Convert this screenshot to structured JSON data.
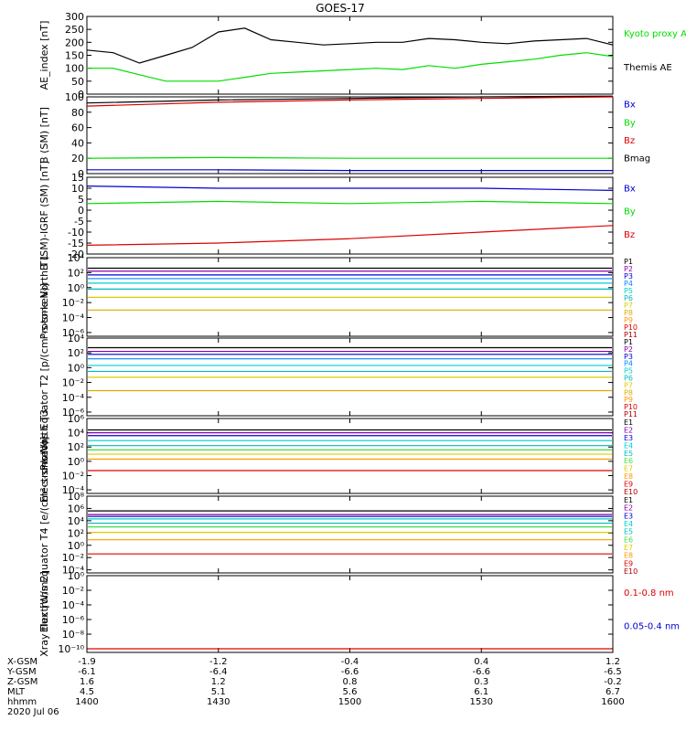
{
  "title": "GOES-17",
  "colors": {
    "black": "#000000",
    "green": "#00dd00",
    "blue": "#0000cc",
    "red": "#dd0000",
    "purple": "#8800aa",
    "cyan": "#00cccc",
    "teal": "#00bbbb",
    "ltgreen": "#44dd44",
    "yellow": "#dddd00",
    "orange": "#ff9900",
    "gold": "#ddaa00"
  },
  "x_axis": {
    "time_labels": [
      "1400",
      "1430",
      "1500",
      "1530",
      "1600"
    ],
    "rows": [
      {
        "label": "X-GSM",
        "values": [
          "-1.9",
          "-1.2",
          "-0.4",
          "0.4",
          "1.2"
        ]
      },
      {
        "label": "Y-GSM",
        "values": [
          "-6.1",
          "-6.4",
          "-6.6",
          "-6.6",
          "-6.5"
        ]
      },
      {
        "label": "Z-GSM",
        "values": [
          "1.6",
          "1.2",
          "0.8",
          "0.3",
          "-0.2"
        ]
      },
      {
        "label": "MLT",
        "values": [
          "4.5",
          "5.1",
          "5.6",
          "6.1",
          "6.7"
        ]
      },
      {
        "label": "hhmm",
        "values": [
          "1400",
          "1430",
          "1500",
          "1530",
          "1600"
        ]
      }
    ],
    "date": "2020 Jul 06"
  },
  "chart_data": [
    {
      "type": "line",
      "ylabel": "AE_index [nT]",
      "yticks": [
        "300",
        "250",
        "200",
        "150",
        "100",
        "50",
        "0"
      ],
      "ylim": [
        0,
        300
      ],
      "x": [
        1400,
        1406,
        1412,
        1418,
        1424,
        1430,
        1436,
        1442,
        1448,
        1454,
        1500,
        1506,
        1512,
        1518,
        1524,
        1530,
        1536,
        1542,
        1548,
        1554,
        1600
      ],
      "series": [
        {
          "name": "Kyoto proxy AE",
          "color": "#00dd00",
          "values": [
            100,
            100,
            75,
            50,
            50,
            50,
            65,
            80,
            85,
            90,
            95,
            100,
            95,
            110,
            100,
            115,
            125,
            135,
            150,
            160,
            145
          ]
        },
        {
          "name": "Themis AE",
          "color": "#000000",
          "values": [
            170,
            160,
            120,
            150,
            180,
            240,
            255,
            210,
            200,
            190,
            195,
            200,
            200,
            215,
            210,
            200,
            195,
            205,
            210,
            215,
            190
          ]
        }
      ],
      "legend": [
        {
          "text": "Kyoto proxy AE",
          "color": "#00dd00"
        },
        {
          "text": "Themis AE",
          "color": "#000000"
        }
      ]
    },
    {
      "type": "line",
      "ylabel": "B (SM) [nT]",
      "yticks": [
        "100",
        "80",
        "60",
        "40",
        "20",
        "0"
      ],
      "ylim": [
        0,
        100
      ],
      "x": [
        1400,
        1430,
        1500,
        1530,
        1600
      ],
      "series": [
        {
          "name": "Bmag",
          "color": "#000000",
          "values": [
            92,
            96,
            98,
            100,
            101
          ]
        },
        {
          "name": "Bx",
          "color": "#0000cc",
          "values": [
            5,
            5,
            4,
            4,
            4
          ]
        },
        {
          "name": "By",
          "color": "#00dd00",
          "values": [
            20,
            21,
            20,
            20,
            20
          ]
        },
        {
          "name": "Bz",
          "color": "#dd0000",
          "values": [
            88,
            93,
            96,
            98,
            100
          ]
        }
      ],
      "legend": [
        {
          "text": "Bx",
          "color": "#0000cc"
        },
        {
          "text": "By",
          "color": "#00dd00"
        },
        {
          "text": "Bz",
          "color": "#dd0000"
        },
        {
          "text": "Bmag",
          "color": "#000000"
        }
      ]
    },
    {
      "type": "line",
      "ylabel": "B (SM)-IGRF (SM) [nT]",
      "yticks": [
        "15",
        "10",
        "5",
        "0",
        "-5",
        "-10",
        "-15",
        "-20"
      ],
      "ylim": [
        -20,
        15
      ],
      "x": [
        1400,
        1430,
        1500,
        1530,
        1600
      ],
      "series": [
        {
          "name": "Bx",
          "color": "#0000cc",
          "values": [
            11,
            10,
            10,
            10,
            9
          ]
        },
        {
          "name": "By",
          "color": "#00dd00",
          "values": [
            3,
            4,
            3,
            4,
            3
          ]
        },
        {
          "name": "Bz",
          "color": "#dd0000",
          "values": [
            -16,
            -15,
            -13,
            -10,
            -7
          ]
        }
      ],
      "legend": [
        {
          "text": "Bx",
          "color": "#0000cc"
        },
        {
          "text": "By",
          "color": "#00dd00"
        },
        {
          "text": "Bz",
          "color": "#dd0000"
        }
      ]
    },
    {
      "type": "line",
      "ylabel": "Protons North T1",
      "log": true,
      "yticks": [
        "10⁴",
        "10²",
        "10⁰",
        "10⁻²",
        "10⁻⁴",
        "10⁻⁶"
      ],
      "ylim": [
        -6.5,
        4
      ],
      "channels": [
        {
          "name": "P1",
          "color": "#000000",
          "level": 2.6
        },
        {
          "name": "P2",
          "color": "#8800aa",
          "level": 2.2
        },
        {
          "name": "P3",
          "color": "#0000cc",
          "level": 1.7
        },
        {
          "name": "P4",
          "color": "#0088ff",
          "level": 1.2
        },
        {
          "name": "P5",
          "color": "#00cccc",
          "level": 0.6
        },
        {
          "name": "P6",
          "color": "#00bbbb",
          "level": -0.2
        },
        {
          "name": "P7",
          "color": "#ddcc00",
          "level": -1.3
        },
        {
          "name": "P8",
          "color": "#ddaa00",
          "level": -3.0
        },
        {
          "name": "P9",
          "color": "#ff9900",
          "level": -99
        },
        {
          "name": "P10",
          "color": "#dd0000",
          "level": -99
        },
        {
          "name": "P11",
          "color": "#aa0000",
          "level": -99
        }
      ]
    },
    {
      "type": "line",
      "ylabel": "Protons Equator T2 [p/(cm²-s-sr-keV)]",
      "log": true,
      "yticks": [
        "10⁴",
        "10²",
        "10⁰",
        "10⁻²",
        "10⁻⁴",
        "10⁻⁶"
      ],
      "ylim": [
        -6.5,
        4
      ],
      "channels": [
        {
          "name": "P1",
          "color": "#000000",
          "level": 2.7
        },
        {
          "name": "P2",
          "color": "#8800aa",
          "level": 2.2
        },
        {
          "name": "P3",
          "color": "#0000cc",
          "level": 1.8
        },
        {
          "name": "P4",
          "color": "#0088ff",
          "level": 1.2
        },
        {
          "name": "P5",
          "color": "#00cccc",
          "level": 0.3
        },
        {
          "name": "P6",
          "color": "#00bbbb",
          "level": -0.5
        },
        {
          "name": "P7",
          "color": "#ddcc00",
          "level": -1.3
        },
        {
          "name": "P8",
          "color": "#ddaa00",
          "level": -3.1
        },
        {
          "name": "P9",
          "color": "#ff9900",
          "level": -99
        },
        {
          "name": "P10",
          "color": "#dd0000",
          "level": -99
        },
        {
          "name": "P11",
          "color": "#aa0000",
          "level": -99
        }
      ]
    },
    {
      "type": "line",
      "ylabel": "Electrons North T3",
      "log": true,
      "yticks": [
        "10⁶",
        "10⁴",
        "10²",
        "10⁰",
        "10⁻²",
        "10⁻⁴"
      ],
      "ylim": [
        -4.5,
        6
      ],
      "channels": [
        {
          "name": "E1",
          "color": "#000000",
          "level": 4.4
        },
        {
          "name": "E2",
          "color": "#8800aa",
          "level": 4.0
        },
        {
          "name": "E3",
          "color": "#0000cc",
          "level": 3.6
        },
        {
          "name": "E4",
          "color": "#00cccc",
          "level": 2.9
        },
        {
          "name": "E5",
          "color": "#00bbbb",
          "level": 2.2
        },
        {
          "name": "E6",
          "color": "#44dd44",
          "level": 1.6
        },
        {
          "name": "E7",
          "color": "#ddcc00",
          "level": 1.0
        },
        {
          "name": "E8",
          "color": "#ff9900",
          "level": 0.3
        },
        {
          "name": "E9",
          "color": "#dd0000",
          "level": -1.3
        },
        {
          "name": "E10",
          "color": "#aa0000",
          "level": -99
        }
      ]
    },
    {
      "type": "line",
      "ylabel": "Electrons Equator T4 [e/(cm²-s-sr-keV)]",
      "log": true,
      "yticks": [
        "10⁸",
        "10⁶",
        "10⁴",
        "10²",
        "10⁰",
        "10⁻²",
        "10⁻⁴"
      ],
      "ylim": [
        -4.5,
        8
      ],
      "channels": [
        {
          "name": "E1",
          "color": "#000000",
          "level": 5.6
        },
        {
          "name": "E2",
          "color": "#8800aa",
          "level": 5.0
        },
        {
          "name": "E3",
          "color": "#0000cc",
          "level": 4.7
        },
        {
          "name": "E4",
          "color": "#00cccc",
          "level": 4.3
        },
        {
          "name": "E5",
          "color": "#00bbbb",
          "level": 3.6
        },
        {
          "name": "E6",
          "color": "#44dd44",
          "level": 3.0
        },
        {
          "name": "E7",
          "color": "#ddcc00",
          "level": 2.1
        },
        {
          "name": "E8",
          "color": "#ff9900",
          "level": 0.9
        },
        {
          "name": "E9",
          "color": "#dd0000",
          "level": -1.4
        },
        {
          "name": "E10",
          "color": "#aa0000",
          "level": -99
        }
      ]
    },
    {
      "type": "line",
      "ylabel": "Xray flux [W/m2]",
      "log": true,
      "yticks": [
        "10⁰",
        "10⁻²",
        "10⁻⁴",
        "10⁻⁶",
        "10⁻⁸",
        "10⁻¹⁰"
      ],
      "ylim": [
        -10.5,
        0
      ],
      "series": [
        {
          "name": "0.1-0.8 nm",
          "color": "#dd0000",
          "level": -10
        }
      ],
      "legend": [
        {
          "text": "0.1-0.8 nm",
          "color": "#dd0000"
        },
        {
          "text": "0.05-0.4 nm",
          "color": "#0000cc"
        }
      ]
    }
  ]
}
